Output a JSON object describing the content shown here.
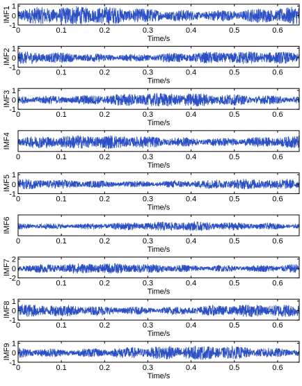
{
  "chart_data": [
    {
      "type": "line",
      "ylabel": "IMF1",
      "xlabel": "Time/s",
      "xlim": [
        0,
        0.65
      ],
      "ylim": [
        -1,
        1.2
      ],
      "yticks": [
        -1,
        0,
        1
      ],
      "xticks": [
        0,
        0.1,
        0.2,
        0.3,
        0.4,
        0.5,
        0.6
      ],
      "amplitude": 0.8,
      "color": "#2b4fc4"
    },
    {
      "type": "line",
      "ylabel": "IMF2",
      "xlabel": "Time/s",
      "xlim": [
        0,
        0.65
      ],
      "ylim": [
        -1,
        1.2
      ],
      "yticks": [
        -1,
        0,
        1
      ],
      "xticks": [
        0,
        0.1,
        0.2,
        0.3,
        0.4,
        0.5,
        0.6
      ],
      "amplitude": 0.55,
      "color": "#2b4fc4"
    },
    {
      "type": "line",
      "ylabel": "IMF3",
      "xlabel": "Time/s",
      "xlim": [
        0,
        0.65
      ],
      "ylim": [
        -1,
        1.2
      ],
      "yticks": [
        -1,
        0,
        1
      ],
      "xticks": [
        0,
        0.1,
        0.2,
        0.3,
        0.4,
        0.5,
        0.6
      ],
      "amplitude": 0.6,
      "color": "#2b4fc4"
    },
    {
      "type": "line",
      "ylabel": "IMF4",
      "xlabel": "Time/s",
      "xlim": [
        0,
        0.65
      ],
      "ylim": [
        -1,
        1.2
      ],
      "yticks": [],
      "xticks": [
        0,
        0.1,
        0.2,
        0.3,
        0.4,
        0.5,
        0.6
      ],
      "amplitude": 0.6,
      "color": "#2b4fc4"
    },
    {
      "type": "line",
      "ylabel": "IMF5",
      "xlabel": "Time/s",
      "xlim": [
        0,
        0.65
      ],
      "ylim": [
        -1,
        1.2
      ],
      "yticks": [
        -1,
        0,
        1
      ],
      "xticks": [
        0,
        0.1,
        0.2,
        0.3,
        0.4,
        0.5,
        0.6
      ],
      "amplitude": 0.45,
      "color": "#2b4fc4"
    },
    {
      "type": "line",
      "ylabel": "IMF6",
      "xlabel": "Time/s",
      "xlim": [
        0,
        0.65
      ],
      "ylim": [
        -1,
        1.2
      ],
      "yticks": [],
      "xticks": [
        0,
        0.1,
        0.2,
        0.3,
        0.4,
        0.5,
        0.6
      ],
      "amplitude": 0.4,
      "color": "#2b4fc4"
    },
    {
      "type": "line",
      "ylabel": "IMF7",
      "xlabel": "Time/s",
      "xlim": [
        0,
        0.65
      ],
      "ylim": [
        -2,
        2.4
      ],
      "yticks": [
        -2,
        0,
        2
      ],
      "xticks": [
        0,
        0.1,
        0.2,
        0.3,
        0.4,
        0.5,
        0.6
      ],
      "amplitude": 0.45,
      "color": "#2b4fc4"
    },
    {
      "type": "line",
      "ylabel": "IMF8",
      "xlabel": "Time/s",
      "xlim": [
        0,
        0.65
      ],
      "ylim": [
        -1,
        1.2
      ],
      "yticks": [
        -1,
        0,
        1
      ],
      "xticks": [
        0,
        0.1,
        0.2,
        0.3,
        0.4,
        0.5,
        0.6
      ],
      "amplitude": 0.55,
      "color": "#2b4fc4"
    },
    {
      "type": "line",
      "ylabel": "IMF9",
      "xlabel": "Time/s",
      "xlim": [
        0,
        0.65
      ],
      "ylim": [
        -1,
        1.2
      ],
      "yticks": [
        -1,
        0,
        1
      ],
      "xticks": [
        0,
        0.1,
        0.2,
        0.3,
        0.4,
        0.5,
        0.6
      ],
      "amplitude": 0.6,
      "color": "#2b4fc4"
    }
  ]
}
